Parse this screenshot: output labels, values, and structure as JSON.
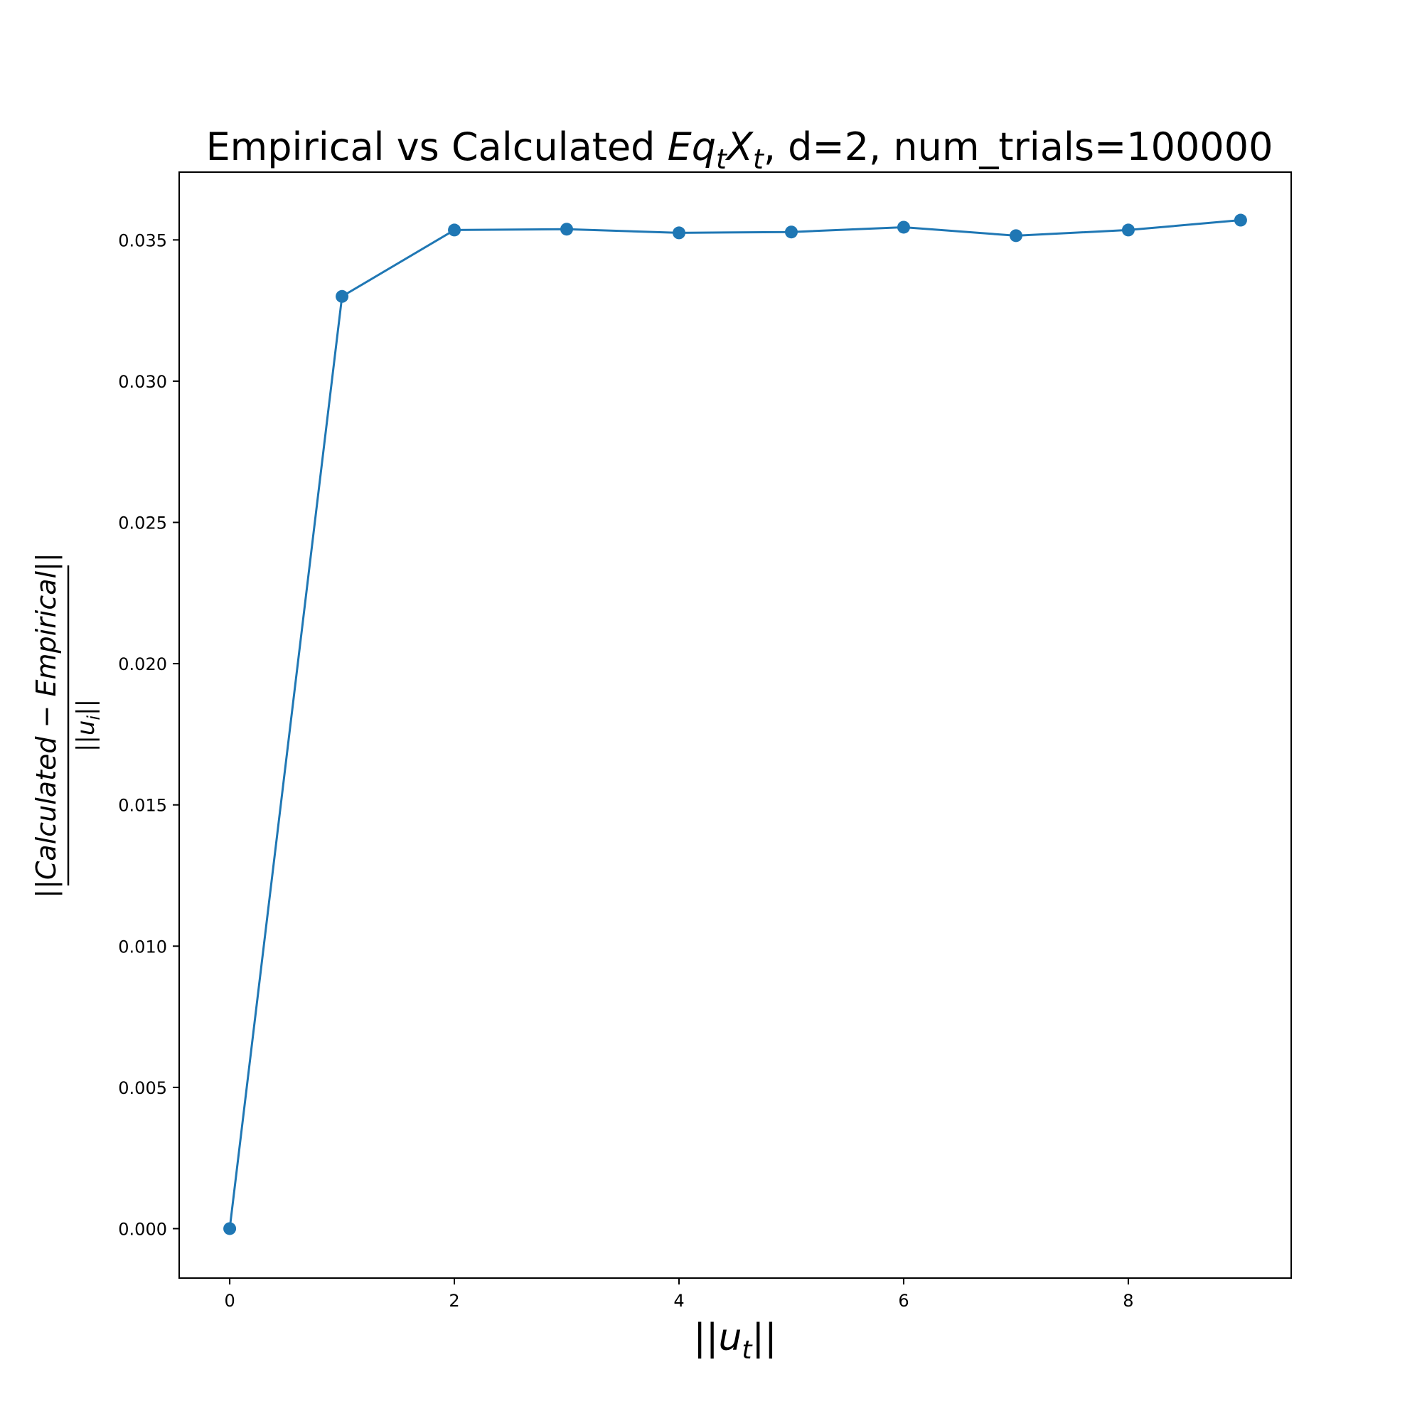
{
  "chart_data": {
    "type": "line",
    "title": {
      "prefix": "Empirical vs Calculated ",
      "math_main1": "Eq",
      "math_sub1": "t",
      "math_main2": "X",
      "math_sub2": "t",
      "suffix": ", d=2, num_trials=100000"
    },
    "xlabel": {
      "open": "||",
      "var": "u",
      "sub": "t",
      "close": "||"
    },
    "ylabel": {
      "numerator": "||Calculated − Empirical||",
      "denominator_open": "||",
      "denominator_var": "u",
      "denominator_sub": "i",
      "denominator_close": "||"
    },
    "x": [
      0,
      1,
      2,
      3,
      4,
      5,
      6,
      7,
      8,
      9
    ],
    "series": [
      {
        "values": [
          0.0,
          0.033,
          0.03535,
          0.03538,
          0.03525,
          0.03528,
          0.03545,
          0.03515,
          0.03535,
          0.0357
        ],
        "color": "#1f77b4",
        "marker": "circle"
      }
    ],
    "xlim": [
      -0.45,
      9.45
    ],
    "ylim": [
      -0.00175,
      0.0374
    ],
    "xticks": [
      0,
      2,
      4,
      6,
      8
    ],
    "xtick_labels": [
      "0",
      "2",
      "4",
      "6",
      "8"
    ],
    "yticks": [
      0.0,
      0.005,
      0.01,
      0.015,
      0.02,
      0.025,
      0.03,
      0.035
    ],
    "ytick_labels": [
      "0.000",
      "0.005",
      "0.010",
      "0.015",
      "0.020",
      "0.025",
      "0.030",
      "0.035"
    ],
    "grid": false,
    "legend": "none"
  }
}
